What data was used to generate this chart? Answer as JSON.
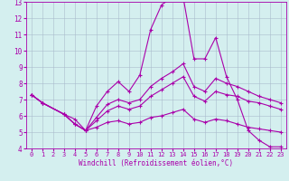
{
  "xlabel": "Windchill (Refroidissement éolien,°C)",
  "bg_color": "#d4efef",
  "line_color": "#aa00aa",
  "grid_color": "#aabbcc",
  "xlim": [
    -0.5,
    23.5
  ],
  "ylim": [
    4,
    13
  ],
  "yticks": [
    4,
    5,
    6,
    7,
    8,
    9,
    10,
    11,
    12,
    13
  ],
  "xticks": [
    0,
    1,
    2,
    3,
    4,
    5,
    6,
    7,
    8,
    9,
    10,
    11,
    12,
    13,
    14,
    15,
    16,
    17,
    18,
    19,
    20,
    21,
    22,
    23
  ],
  "lines": [
    {
      "x": [
        0,
        1,
        3,
        4,
        5,
        6,
        7,
        8,
        9,
        10,
        11,
        12,
        13,
        14,
        15,
        16,
        17,
        18,
        19,
        20,
        21,
        22,
        23
      ],
      "y": [
        7.3,
        6.8,
        6.1,
        5.8,
        5.1,
        6.6,
        7.5,
        8.1,
        7.5,
        8.5,
        11.3,
        12.8,
        13.3,
        13.3,
        9.5,
        9.5,
        10.8,
        8.4,
        7.0,
        5.1,
        4.5,
        4.1,
        4.1
      ]
    },
    {
      "x": [
        0,
        1,
        3,
        4,
        5,
        6,
        7,
        8,
        9,
        10,
        11,
        12,
        13,
        14,
        15,
        16,
        17,
        18,
        19,
        20,
        21,
        22,
        23
      ],
      "y": [
        7.3,
        6.8,
        6.1,
        5.5,
        5.1,
        5.9,
        6.7,
        7.0,
        6.8,
        7.0,
        7.8,
        8.3,
        8.7,
        9.2,
        7.8,
        7.5,
        8.3,
        8.0,
        7.8,
        7.5,
        7.2,
        7.0,
        6.8
      ]
    },
    {
      "x": [
        0,
        1,
        3,
        4,
        5,
        6,
        7,
        8,
        9,
        10,
        11,
        12,
        13,
        14,
        15,
        16,
        17,
        18,
        19,
        20,
        21,
        22,
        23
      ],
      "y": [
        7.3,
        6.8,
        6.1,
        5.5,
        5.1,
        5.7,
        6.3,
        6.6,
        6.4,
        6.6,
        7.2,
        7.6,
        8.0,
        8.4,
        7.2,
        6.9,
        7.5,
        7.3,
        7.2,
        6.9,
        6.8,
        6.6,
        6.4
      ]
    },
    {
      "x": [
        0,
        1,
        3,
        4,
        5,
        6,
        7,
        8,
        9,
        10,
        11,
        12,
        13,
        14,
        15,
        16,
        17,
        18,
        19,
        20,
        21,
        22,
        23
      ],
      "y": [
        7.3,
        6.8,
        6.1,
        5.5,
        5.1,
        5.3,
        5.6,
        5.7,
        5.5,
        5.6,
        5.9,
        6.0,
        6.2,
        6.4,
        5.8,
        5.6,
        5.8,
        5.7,
        5.5,
        5.3,
        5.2,
        5.1,
        5.0
      ]
    }
  ],
  "marker": "+",
  "markersize": 3,
  "linewidth": 0.8
}
